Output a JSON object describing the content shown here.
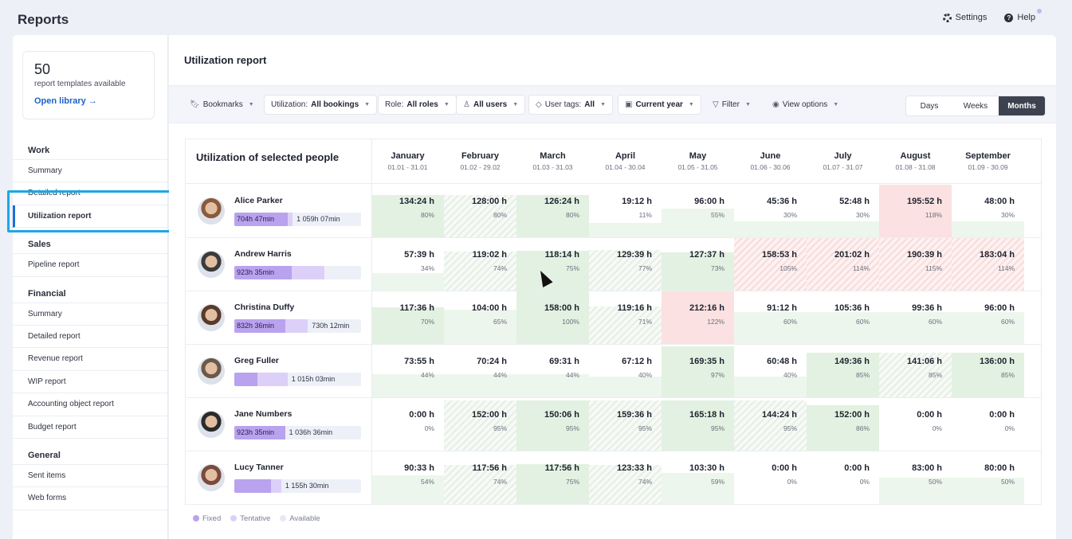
{
  "app": {
    "title": "Reports"
  },
  "topbar": {
    "settings": "Settings",
    "help": "Help"
  },
  "sidebar": {
    "library": {
      "count": "50",
      "subtitle": "report templates available",
      "link": "Open library →"
    },
    "sections": [
      {
        "title": "Work",
        "items": [
          "Summary",
          "Detailed report",
          "Utilization report"
        ]
      },
      {
        "title": "Sales",
        "items": [
          "Pipeline report"
        ]
      },
      {
        "title": "Financial",
        "items": [
          "Summary",
          "Detailed report",
          "Revenue report",
          "WIP report",
          "Accounting object report",
          "Budget report"
        ]
      },
      {
        "title": "General",
        "items": [
          "Sent items",
          "Web forms"
        ]
      }
    ],
    "active_item": "Utilization report"
  },
  "main": {
    "title": "Utilization report"
  },
  "toolbar": {
    "bookmarks": "Bookmarks",
    "utilization_label": "Utilization:",
    "utilization_value": "All bookings",
    "role_label": "Role:",
    "role_value": "All roles",
    "users": "All users",
    "tags_label": "User tags:",
    "tags_value": "All",
    "period": "Current year",
    "filter": "Filter",
    "view_options": "View options",
    "views": [
      "Days",
      "Weeks",
      "Months"
    ],
    "active_view": "Months"
  },
  "grid": {
    "title": "Utilization of selected people",
    "months": [
      {
        "name": "January",
        "range": "01.01 - 31.01"
      },
      {
        "name": "February",
        "range": "01.02 - 29.02"
      },
      {
        "name": "March",
        "range": "01.03 - 31.03"
      },
      {
        "name": "April",
        "range": "01.04 - 30.04"
      },
      {
        "name": "May",
        "range": "01.05 - 31.05"
      },
      {
        "name": "June",
        "range": "01.06 - 30.06"
      },
      {
        "name": "July",
        "range": "01.07 - 31.07"
      },
      {
        "name": "August",
        "range": "01.08 - 31.08"
      },
      {
        "name": "September",
        "range": "01.09 - 30.09"
      }
    ],
    "people": [
      {
        "name": "Alice Parker",
        "fixed_label": "704h 47min",
        "second_label": "1 059h 07min",
        "fixed_frac": 0.42,
        "tent_frac": 0.04,
        "cells": [
          [
            "134:24 h",
            "80%"
          ],
          [
            "128:00 h",
            "80%"
          ],
          [
            "126:24 h",
            "80%"
          ],
          [
            "19:12 h",
            "11%"
          ],
          [
            "96:00 h",
            "55%"
          ],
          [
            "45:36 h",
            "30%"
          ],
          [
            "52:48 h",
            "30%"
          ],
          [
            "195:52 h",
            "118%"
          ],
          [
            "48:00 h",
            "30%"
          ]
        ]
      },
      {
        "name": "Andrew Harris",
        "fixed_label": "923h 35min",
        "second_label": "",
        "fixed_frac": 0.45,
        "tent_frac": 0.26,
        "cells": [
          [
            "57:39 h",
            "34%"
          ],
          [
            "119:02 h",
            "74%"
          ],
          [
            "118:14 h",
            "75%"
          ],
          [
            "129:39 h",
            "77%"
          ],
          [
            "127:37 h",
            "73%"
          ],
          [
            "158:53 h",
            "105%"
          ],
          [
            "201:02 h",
            "114%"
          ],
          [
            "190:39 h",
            "115%"
          ],
          [
            "183:04 h",
            "114%"
          ]
        ]
      },
      {
        "name": "Christina Duffy",
        "fixed_label": "832h 36min",
        "second_label": "730h 12min",
        "fixed_frac": 0.4,
        "tent_frac": 0.18,
        "cells": [
          [
            "117:36 h",
            "70%"
          ],
          [
            "104:00 h",
            "65%"
          ],
          [
            "158:00 h",
            "100%"
          ],
          [
            "119:16 h",
            "71%"
          ],
          [
            "212:16 h",
            "122%"
          ],
          [
            "91:12 h",
            "60%"
          ],
          [
            "105:36 h",
            "60%"
          ],
          [
            "99:36 h",
            "60%"
          ],
          [
            "96:00 h",
            "60%"
          ]
        ]
      },
      {
        "name": "Greg Fuller",
        "fixed_label": "",
        "second_label": "1 015h 03min",
        "fixed_frac": 0.18,
        "tent_frac": 0.24,
        "cells": [
          [
            "73:55 h",
            "44%"
          ],
          [
            "70:24 h",
            "44%"
          ],
          [
            "69:31 h",
            "44%"
          ],
          [
            "67:12 h",
            "40%"
          ],
          [
            "169:35 h",
            "97%"
          ],
          [
            "60:48 h",
            "40%"
          ],
          [
            "149:36 h",
            "85%"
          ],
          [
            "141:06 h",
            "85%"
          ],
          [
            "136:00 h",
            "85%"
          ]
        ]
      },
      {
        "name": "Jane Numbers",
        "fixed_label": "923h 35min",
        "second_label": "1 036h 36min",
        "fixed_frac": 0.4,
        "tent_frac": 0.0,
        "cells": [
          [
            "0:00 h",
            "0%"
          ],
          [
            "152:00 h",
            "95%"
          ],
          [
            "150:06 h",
            "95%"
          ],
          [
            "159:36 h",
            "95%"
          ],
          [
            "165:18 h",
            "95%"
          ],
          [
            "144:24 h",
            "95%"
          ],
          [
            "152:00 h",
            "86%"
          ],
          [
            "0:00 h",
            "0%"
          ],
          [
            "0:00 h",
            "0%"
          ]
        ]
      },
      {
        "name": "Lucy Tanner",
        "fixed_label": "",
        "second_label": "1 155h 30min",
        "fixed_frac": 0.29,
        "tent_frac": 0.08,
        "cells": [
          [
            "90:33 h",
            "54%"
          ],
          [
            "117:56 h",
            "74%"
          ],
          [
            "117:56 h",
            "75%"
          ],
          [
            "123:33 h",
            "74%"
          ],
          [
            "103:30 h",
            "59%"
          ],
          [
            "0:00 h",
            "0%"
          ],
          [
            "0:00 h",
            "0%"
          ],
          [
            "83:00 h",
            "50%"
          ],
          [
            "80:00 h",
            "50%"
          ]
        ]
      }
    ]
  },
  "legend": [
    "Fixed",
    "Tentative",
    "Available"
  ],
  "colors": {
    "accent": "#1b6fd6",
    "highlight": "#1ea7e4",
    "fixed": "#b9a2ee",
    "tentative": "#dcd0f8",
    "available": "#e6e8f4"
  }
}
